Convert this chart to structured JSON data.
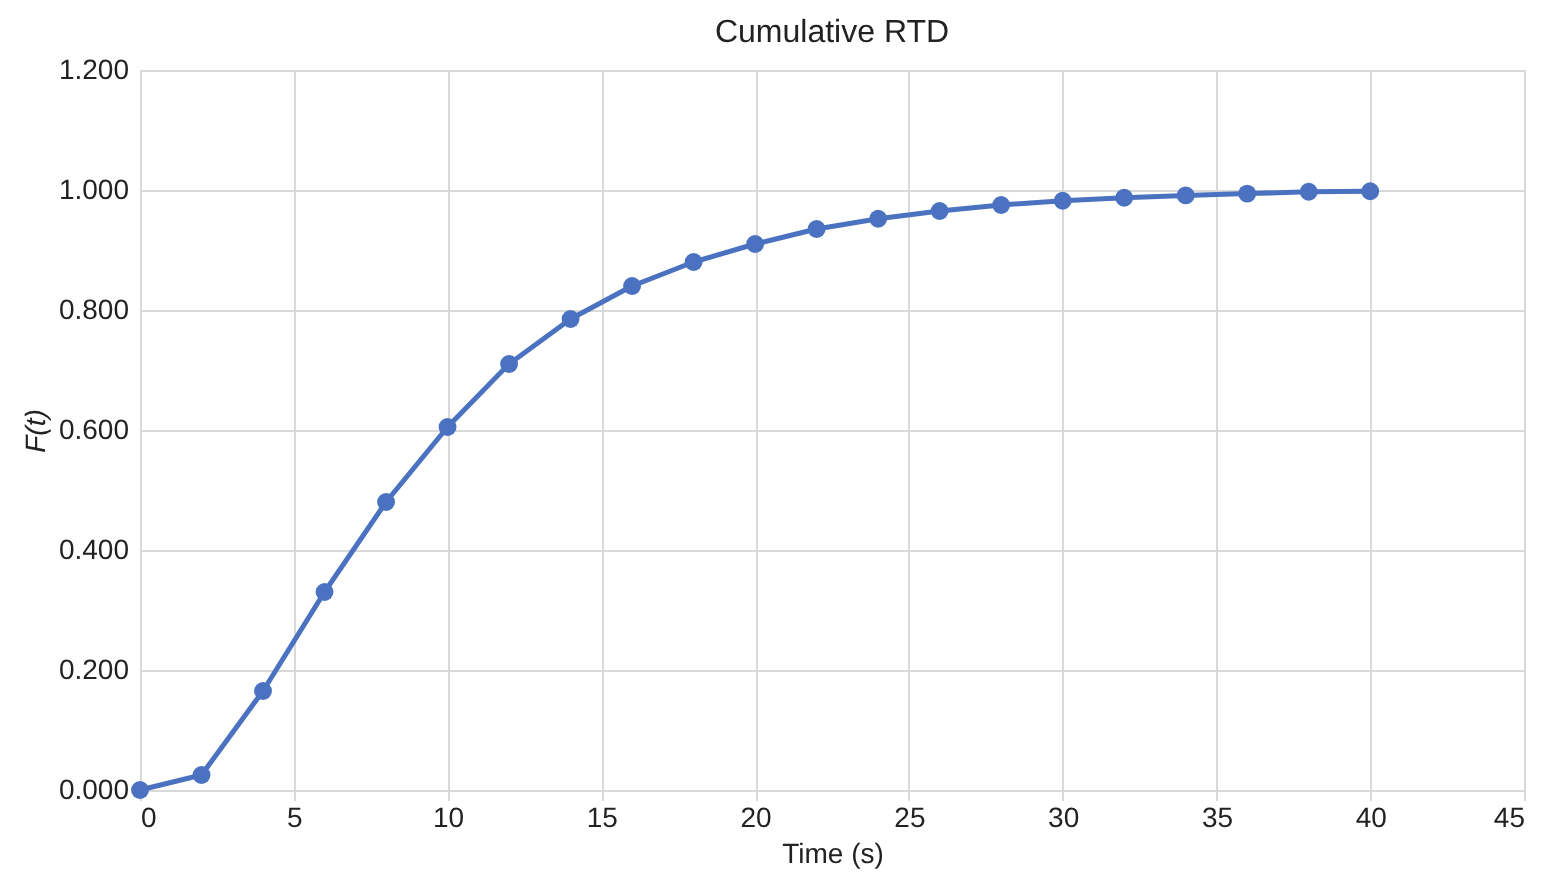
{
  "chart_data": {
    "type": "line",
    "title": "Cumulative RTD",
    "xlabel": "Time (s)",
    "ylabel": "F(t)",
    "x": [
      0,
      2,
      4,
      6,
      8,
      10,
      12,
      14,
      16,
      18,
      20,
      22,
      24,
      26,
      28,
      30,
      32,
      34,
      36,
      38,
      40
    ],
    "series": [
      {
        "color": "#4a72c0",
        "values": [
          0.0,
          0.025,
          0.165,
          0.33,
          0.48,
          0.605,
          0.71,
          0.785,
          0.84,
          0.88,
          0.91,
          0.935,
          0.952,
          0.965,
          0.975,
          0.982,
          0.987,
          0.991,
          0.994,
          0.997,
          0.998
        ]
      }
    ],
    "xlim": [
      0,
      45
    ],
    "xticks": [
      0,
      5,
      10,
      15,
      20,
      25,
      30,
      35,
      40,
      45
    ],
    "ylim": [
      0,
      1.2
    ],
    "yticks": [
      {
        "value": 0,
        "label": "0.000"
      },
      {
        "value": 0.2,
        "label": "0.200"
      },
      {
        "value": 0.4,
        "label": "0.400"
      },
      {
        "value": 0.6,
        "label": "0.600"
      },
      {
        "value": 0.8,
        "label": "0.800"
      },
      {
        "value": 1.0,
        "label": "1.000"
      },
      {
        "value": 1.2,
        "label": "1.200"
      }
    ],
    "grid": true,
    "marker": "circle",
    "line_style": "solid"
  }
}
